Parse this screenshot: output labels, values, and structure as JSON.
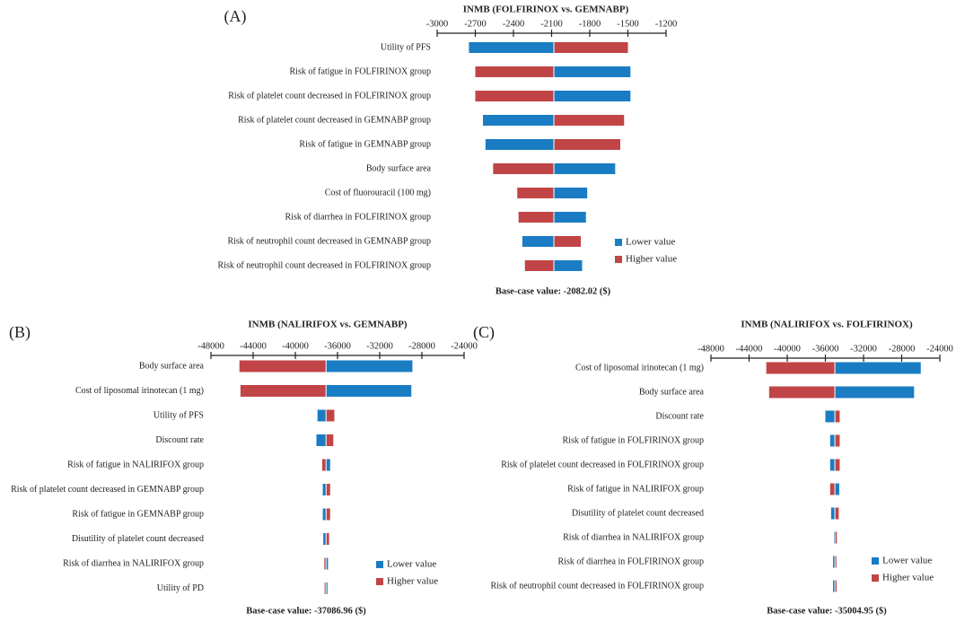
{
  "colors": {
    "lower": "#1a7dc4",
    "higher": "#c14546",
    "axis": "#222222"
  },
  "chart_data": [
    {
      "type": "bar",
      "orientation": "horizontal-tornado",
      "panel_label": "(A)",
      "title": "INMB (FOLFIRINOX vs. GEMNABP)",
      "ticks": [
        "-3000",
        "-2700",
        "-2400",
        "-2100",
        "-1800",
        "-1500",
        "-1200"
      ],
      "xlim": [
        -3000,
        -1200
      ],
      "base_value": -2082.02,
      "base_label": "Base-case value: -2082.02 ($)",
      "legend": {
        "lower": "Lower value",
        "higher": "Higher value"
      },
      "categories": [
        "Utility of PFS",
        "Risk of fatigue in FOLFIRINOX group",
        "Risk of platelet count decreased in FOLFIRINOX group",
        "Risk of platelet count decreased in GEMNABP group",
        "Risk of fatigue in GEMNABP group",
        "Body surface area",
        "Cost of fluorouracil (100 mg)",
        "Risk of diarrhea in FOLFIRINOX group",
        "Risk of neutrophil count decreased in GEMNABP group",
        "Risk of neutrophil count decreased in FOLFIRINOX group"
      ],
      "series": [
        {
          "name": "Lower value",
          "values": [
            -2750,
            -1480,
            -1480,
            -2640,
            -2620,
            -1600,
            -1820,
            -1830,
            -2330,
            -1860
          ]
        },
        {
          "name": "Higher value",
          "values": [
            -1500,
            -2700,
            -2700,
            -1530,
            -1560,
            -2560,
            -2370,
            -2360,
            -1870,
            -2310
          ]
        }
      ]
    },
    {
      "type": "bar",
      "orientation": "horizontal-tornado",
      "panel_label": "(B)",
      "title": "INMB (NALIRIFOX vs. GEMNABP)",
      "ticks": [
        "-48000",
        "-44000",
        "-40000",
        "-36000",
        "-32000",
        "-28000",
        "-24000"
      ],
      "xlim": [
        -48000,
        -24000
      ],
      "base_value": -37086.96,
      "base_label": "Base-case value: -37086.96 ($)",
      "legend": {
        "lower": "Lower value",
        "higher": "Higher value"
      },
      "categories": [
        "Body surface area",
        "Cost of liposomal irinotecan (1 mg)",
        "Utility of PFS",
        "Discount rate",
        "Risk of fatigue in NALIRIFOX group",
        "Risk of platelet count decreased in GEMNABP group",
        "Risk of fatigue in GEMNABP group",
        "Disutility of platelet count decreased",
        "Risk of diarrhea in NALIRIFOX group",
        "Utility of PD"
      ],
      "series": [
        {
          "name": "Lower value",
          "values": [
            -28900,
            -29000,
            -37900,
            -38000,
            -36700,
            -37400,
            -37400,
            -37350,
            -36900,
            -36950
          ]
        },
        {
          "name": "Higher value",
          "values": [
            -45300,
            -45200,
            -36300,
            -36400,
            -37450,
            -36700,
            -36700,
            -36800,
            -37250,
            -37220
          ]
        }
      ]
    },
    {
      "type": "bar",
      "orientation": "horizontal-tornado",
      "panel_label": "(C)",
      "title": "INMB (NALIRIFOX vs. FOLFIRINOX)",
      "ticks": [
        "-48000",
        "-44000",
        "-40000",
        "-36000",
        "-32000",
        "-28000",
        "-24000"
      ],
      "xlim": [
        -48000,
        -24000
      ],
      "base_value": -35004.95,
      "base_label": "Base-case value: -35004.95 ($)",
      "legend": {
        "lower": "Lower value",
        "higher": "Higher value"
      },
      "categories": [
        "Cost of liposomal irinotecan (1 mg)",
        "Body surface area",
        "Discount rate",
        "Risk of fatigue in FOLFIRINOX group",
        "Risk of platelet count decreased in FOLFIRINOX group",
        "Risk of fatigue in NALIRIFOX group",
        "Disutility of platelet count decreased",
        "Risk of diarrhea in NALIRIFOX group",
        "Risk of diarrhea in FOLFIRINOX group",
        "Risk of neutrophil count decreased in FOLFIRINOX group"
      ],
      "series": [
        {
          "name": "Lower value",
          "values": [
            -26000,
            -26700,
            -36000,
            -35500,
            -35500,
            -34550,
            -35400,
            -35100,
            -35200,
            -35200
          ]
        },
        {
          "name": "Higher value",
          "values": [
            -42200,
            -41900,
            -34500,
            -34500,
            -34500,
            -35500,
            -34600,
            -34800,
            -34850,
            -34830
          ]
        }
      ]
    }
  ]
}
